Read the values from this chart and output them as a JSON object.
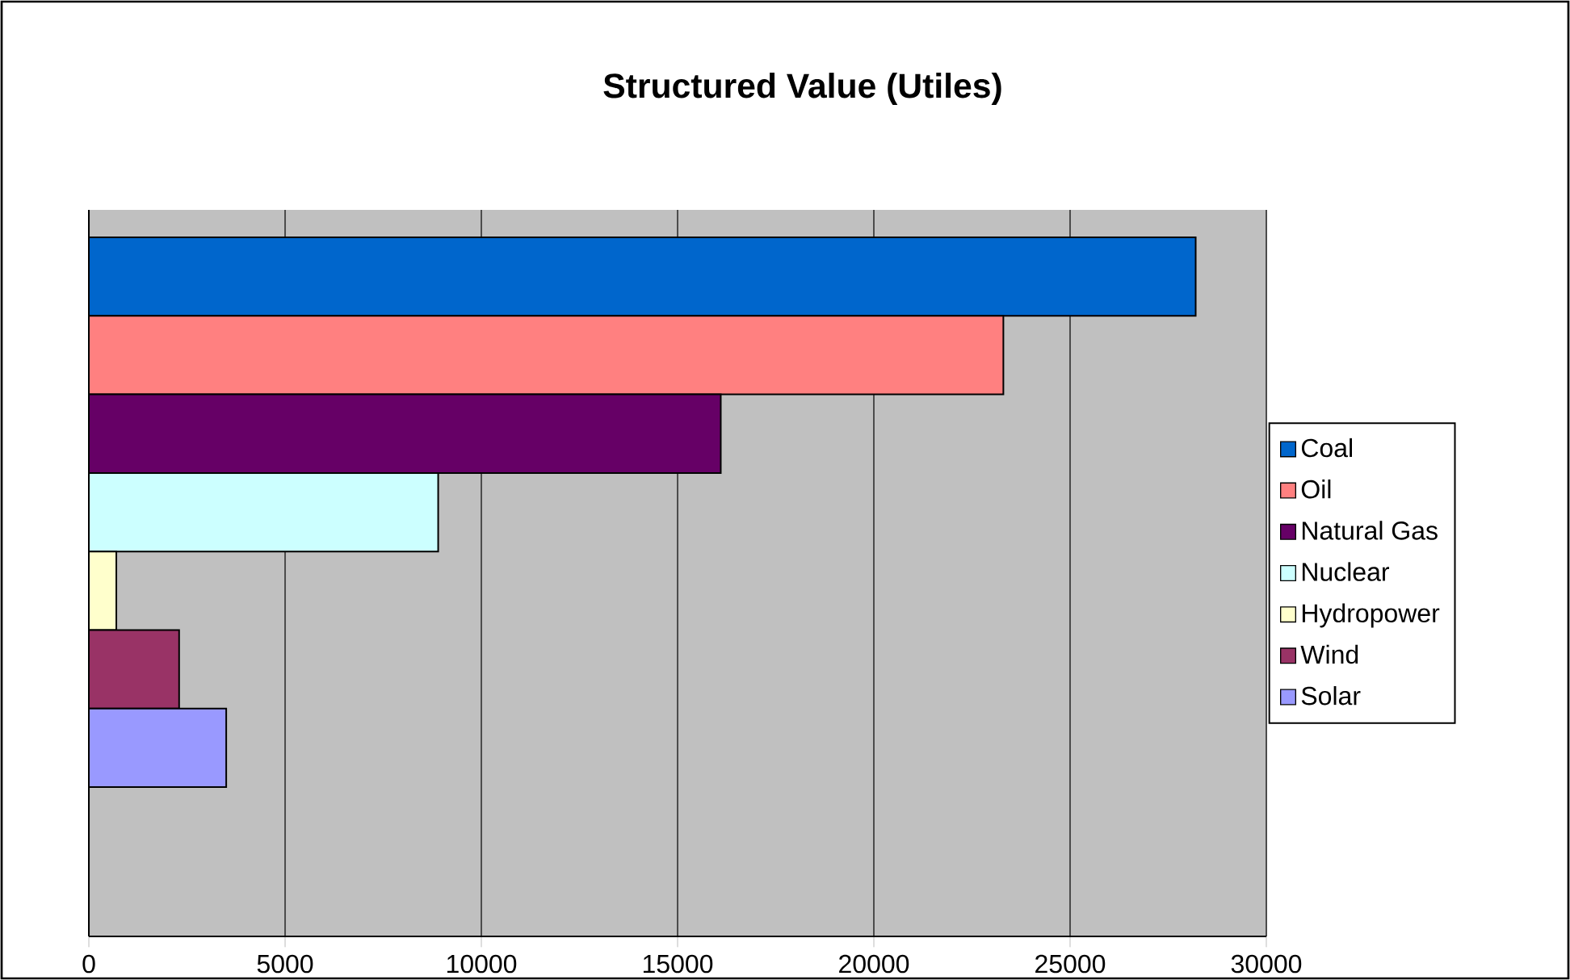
{
  "chart_data": {
    "type": "bar",
    "orientation": "horizontal",
    "title": "Structured Value (Utiles)",
    "categories": [
      null
    ],
    "series": [
      {
        "name": "Coal",
        "color": "#0066cc",
        "values": [
          28200
        ]
      },
      {
        "name": "Oil",
        "color": "#ff8080",
        "values": [
          23300
        ]
      },
      {
        "name": "Natural Gas",
        "color": "#660066",
        "values": [
          16100
        ]
      },
      {
        "name": "Nuclear",
        "color": "#ccffff",
        "values": [
          8900
        ]
      },
      {
        "name": "Hydropower",
        "color": "#ffffcc",
        "values": [
          700
        ]
      },
      {
        "name": "Wind",
        "color": "#993366",
        "values": [
          2300
        ]
      },
      {
        "name": "Solar",
        "color": "#9999ff",
        "values": [
          3500
        ]
      }
    ],
    "xlim": [
      0,
      30000
    ],
    "xticks": [
      0,
      5000,
      10000,
      15000,
      20000,
      25000,
      30000
    ],
    "grid": "x",
    "legend": "right"
  }
}
